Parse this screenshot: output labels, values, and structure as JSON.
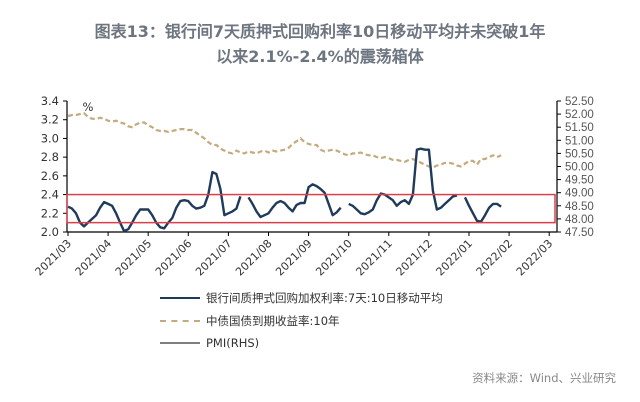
{
  "title": {
    "line1": "图表13：银行间7天质押式回购利率10日移动平均并未突破1年",
    "line2": "以来2.1%-2.4%的震荡箱体"
  },
  "source": "资料来源：Wind、兴业研究",
  "colors": {
    "repo": "#1f3a5a",
    "bond": "#c4ab7f",
    "pmi": "#7f7f7f",
    "box": "#d9404a",
    "axis": "#000000"
  },
  "chart_data": {
    "type": "line",
    "title": "银行间7天质押式回购利率10日移动平均并未突破1年以来2.1%-2.4%的震荡箱体",
    "ylabel": "%",
    "ylim": [
      2.0,
      3.4
    ],
    "yticks": [
      "3.4",
      "3.2",
      "3.0",
      "2.8",
      "2.6",
      "2.4",
      "2.2",
      "2.0"
    ],
    "y2lim": [
      47.5,
      52.5
    ],
    "y2ticks": [
      "52.50",
      "52.00",
      "51.50",
      "51.00",
      "50.50",
      "50.00",
      "49.50",
      "49.00",
      "48.50",
      "48.00",
      "47.50"
    ],
    "xticks": [
      "2021/03",
      "2021/04",
      "2021/05",
      "2021/06",
      "2021/07",
      "2021/08",
      "2021/09",
      "2021/10",
      "2021/11",
      "2021/12",
      "2022/01",
      "2022/02",
      "2022/03"
    ],
    "legend": [
      "银行间质押式回购加权利率:7天:10日移动平均",
      "中债国债到期收益率:10年",
      "PMI(RHS)"
    ],
    "annotation": {
      "type": "box",
      "ymin": 2.1,
      "ymax": 2.4,
      "label": "2.1%-2.4% 震荡箱体"
    },
    "x": [
      0,
      0.1,
      0.2,
      0.3,
      0.4,
      0.5,
      0.6,
      0.7,
      0.8,
      0.9,
      1.0,
      1.1,
      1.2,
      1.3,
      1.4,
      1.5,
      1.6,
      1.7,
      1.8,
      1.9,
      2.0,
      2.1,
      2.2,
      2.3,
      2.4,
      2.5,
      2.6,
      2.7,
      2.8,
      2.9,
      3.0,
      3.1,
      3.2,
      3.3,
      3.4,
      3.5,
      3.6,
      3.7,
      3.8,
      3.9,
      4.0,
      4.1,
      4.2,
      4.3,
      4.4,
      4.5,
      4.6,
      4.7,
      4.8,
      4.9,
      5.0,
      5.1,
      5.2,
      5.3,
      5.4,
      5.5,
      5.6,
      5.7,
      5.8,
      5.9,
      6.0,
      6.1,
      6.2,
      6.3,
      6.4,
      6.5,
      6.6,
      6.7,
      6.8,
      6.9,
      7.0,
      7.1,
      7.2,
      7.3,
      7.4,
      7.5,
      7.6,
      7.7,
      7.8,
      7.9,
      8.0,
      8.1,
      8.2,
      8.3,
      8.4,
      8.5,
      8.6,
      8.7,
      8.8,
      8.9,
      9.0,
      9.1,
      9.2,
      9.3,
      9.4,
      9.5,
      9.6,
      9.7,
      9.8,
      9.9,
      10.0,
      10.1,
      10.2,
      10.3,
      10.4,
      10.5,
      10.6,
      10.7,
      10.8,
      10.9,
      11.0,
      11.1,
      11.2,
      11.3,
      11.4,
      11.5,
      11.6,
      11.7,
      11.8,
      11.9,
      12.0,
      12.1,
      12.2
    ],
    "series": [
      {
        "name": "银行间质押式回购加权利率:7天:10日移动平均",
        "values": [
          2.27,
          2.25,
          2.2,
          2.1,
          2.06,
          2.1,
          2.14,
          2.18,
          2.26,
          2.32,
          2.3,
          2.28,
          2.2,
          2.1,
          2.01,
          2.03,
          2.1,
          2.18,
          2.24,
          2.24,
          2.24,
          2.18,
          2.1,
          2.05,
          2.04,
          2.1,
          2.15,
          2.26,
          2.33,
          2.34,
          2.33,
          2.28,
          2.25,
          2.26,
          2.28,
          2.4,
          2.64,
          2.62,
          2.46,
          2.18,
          2.2,
          2.22,
          2.25,
          2.38,
          null,
          2.37,
          2.3,
          2.22,
          2.16,
          2.18,
          2.2,
          2.26,
          2.31,
          2.33,
          2.31,
          2.26,
          2.22,
          2.29,
          2.31,
          2.31,
          2.48,
          2.51,
          2.49,
          2.46,
          2.42,
          2.3,
          2.18,
          2.21,
          2.26,
          null,
          2.3,
          2.28,
          2.24,
          2.2,
          2.19,
          2.21,
          2.24,
          2.34,
          2.41,
          2.4,
          2.37,
          2.34,
          2.28,
          2.32,
          2.34,
          2.3,
          2.4,
          2.88,
          2.89,
          2.88,
          2.88,
          2.44,
          2.24,
          2.26,
          2.3,
          2.34,
          2.38,
          2.39,
          null,
          2.37,
          2.28,
          2.2,
          2.12,
          2.11,
          2.18,
          2.26,
          2.3,
          2.3,
          2.27,
          null,
          null,
          null,
          null,
          null,
          null,
          null,
          null,
          null,
          null,
          null,
          null,
          null,
          null
        ]
      },
      {
        "name": "中债国债到期收益率:10年",
        "values": [
          3.24,
          3.25,
          3.25,
          3.26,
          3.27,
          3.23,
          3.21,
          3.21,
          3.22,
          3.21,
          3.19,
          3.18,
          3.19,
          3.17,
          3.16,
          3.13,
          3.12,
          3.15,
          3.17,
          3.17,
          3.14,
          3.12,
          3.09,
          3.08,
          3.08,
          3.07,
          3.08,
          3.09,
          3.1,
          3.1,
          3.09,
          3.09,
          3.06,
          3.03,
          3.0,
          2.96,
          2.93,
          2.93,
          2.89,
          2.87,
          2.85,
          2.84,
          2.87,
          2.85,
          2.84,
          2.86,
          2.85,
          2.84,
          2.86,
          2.87,
          2.85,
          2.87,
          2.86,
          2.87,
          2.88,
          2.9,
          2.94,
          2.97,
          3.0,
          2.96,
          2.94,
          2.93,
          2.93,
          2.88,
          2.86,
          2.87,
          2.88,
          2.87,
          2.85,
          2.83,
          2.82,
          2.84,
          2.84,
          2.85,
          2.83,
          2.82,
          2.82,
          2.8,
          2.79,
          2.8,
          2.79,
          2.77,
          2.77,
          2.76,
          2.75,
          2.77,
          2.78,
          2.76,
          2.74,
          2.72,
          2.7,
          2.69,
          2.71,
          2.72,
          2.74,
          2.74,
          2.73,
          2.71,
          2.7,
          2.73,
          2.76,
          2.76,
          2.72,
          2.78,
          2.78,
          2.8,
          2.82,
          2.8,
          2.82,
          null,
          null,
          null,
          null,
          null,
          null,
          null,
          null,
          null,
          null,
          null,
          null,
          null,
          null
        ]
      },
      {
        "name": "PMI(RHS)",
        "values": []
      }
    ]
  }
}
